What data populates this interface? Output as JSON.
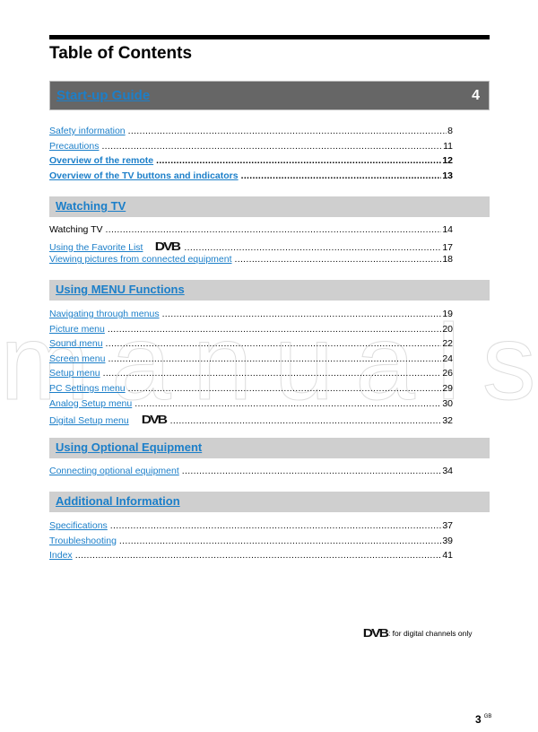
{
  "title": "Table of Contents",
  "watermark": "manuals",
  "guide": {
    "label": "Start-up Guide",
    "page": "4"
  },
  "sections": [
    {
      "label": "Watching TV"
    },
    {
      "label": "Using MENU Functions"
    },
    {
      "label": "Using Optional Equipment"
    },
    {
      "label": "Additional Information"
    }
  ],
  "startup_entries": [
    {
      "text": "Safety information",
      "page": "8"
    },
    {
      "text": "Precautions",
      "page": "11"
    },
    {
      "text": "Overview of the remote",
      "page": "12"
    },
    {
      "text": "Overview of the TV buttons and indicators",
      "page": "13"
    }
  ],
  "watching_entries": [
    {
      "text": "Watching TV",
      "page": "14"
    },
    {
      "text": "Using the Favorite List",
      "page": "17",
      "dvb": "DVB"
    },
    {
      "text": "Viewing pictures from connected equipment",
      "page": "18"
    }
  ],
  "menu_entries": [
    {
      "text": "Navigating through menus",
      "page": "19"
    },
    {
      "text": "Picture menu",
      "page": "20"
    },
    {
      "text": "Sound menu",
      "page": "22"
    },
    {
      "text": "Screen menu",
      "page": "24"
    },
    {
      "text": "Setup menu",
      "page": "26"
    },
    {
      "text": "PC Settings menu",
      "page": "29"
    },
    {
      "text": "Analog Setup menu",
      "page": "30"
    },
    {
      "text": "Digital Setup menu",
      "page": "32",
      "dvb": "DVB"
    }
  ],
  "optional_entries": [
    {
      "text": "Connecting optional equipment",
      "page": "34"
    }
  ],
  "additional_entries": [
    {
      "text": "Specifications",
      "page": "37"
    },
    {
      "text": "Troubleshooting",
      "page": "39"
    },
    {
      "text": "Index",
      "page": "41"
    }
  ],
  "note": {
    "logo": "DVB",
    "text": ": for digital channels only"
  },
  "page_number": "3",
  "page_suffix": "GB",
  "colors": {
    "link": "#1c7fc9",
    "guide_bar": "#666666",
    "section_bar": "#cfcfcf"
  }
}
